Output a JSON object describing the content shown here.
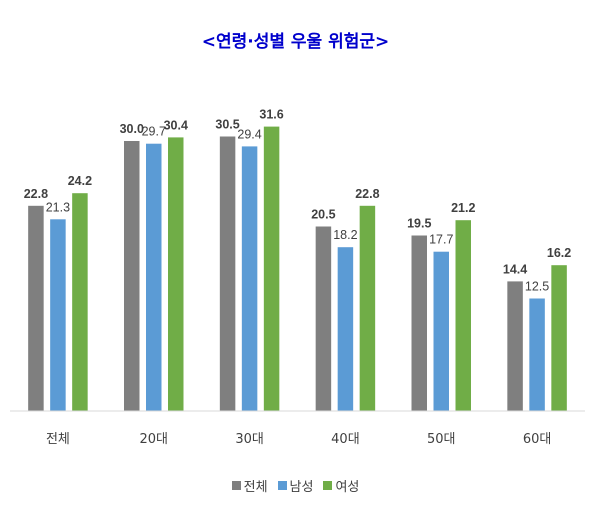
{
  "chart_data": {
    "type": "bar",
    "title": "<연령·성별 우울 위험군>",
    "categories": [
      "전체",
      "20대",
      "30대",
      "40대",
      "50대",
      "60대"
    ],
    "series": [
      {
        "name": "전체",
        "color": "#7f7f7f",
        "values": [
          22.8,
          30.0,
          30.5,
          20.5,
          19.5,
          14.4
        ]
      },
      {
        "name": "남성",
        "color": "#5b9bd5",
        "values": [
          21.3,
          29.7,
          29.4,
          18.2,
          17.7,
          12.5
        ]
      },
      {
        "name": "여성",
        "color": "#70ad47",
        "values": [
          24.2,
          30.4,
          31.6,
          22.8,
          21.2,
          16.2
        ]
      }
    ],
    "data_labels": [
      [
        "22.8",
        "30.0",
        "30.5",
        "20.5",
        "19.5",
        "14.4"
      ],
      [
        "21.3",
        "29.7",
        "29.4",
        "18.2",
        "17.7",
        "12.5"
      ],
      [
        "24.2",
        "30.4",
        "31.6",
        "22.8",
        "21.2",
        "16.2"
      ]
    ],
    "ylim": [
      0,
      35
    ],
    "grid": false,
    "legend_position": "bottom",
    "axis_color": "#d9d9d9",
    "label_color": "#404040"
  }
}
